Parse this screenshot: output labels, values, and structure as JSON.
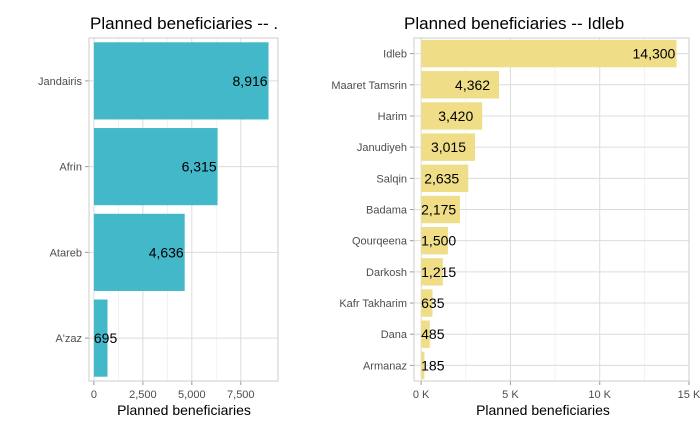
{
  "chart_data": [
    {
      "type": "bar",
      "orientation": "horizontal",
      "title": "Planned beneficiaries -- .",
      "xlabel": "Planned beneficiaries",
      "ylabel": "",
      "categories": [
        "Jandairis",
        "Afrin",
        "Atareb",
        "A'zaz"
      ],
      "values": [
        8916,
        6315,
        4636,
        695
      ],
      "value_labels": [
        "8,916",
        "6,315",
        "4,636",
        "695"
      ],
      "xlim": [
        -250,
        9400
      ],
      "xticks": [
        0,
        2500,
        5000,
        7500
      ],
      "xtick_labels": [
        "0",
        "2,500",
        "5,000",
        "7,500"
      ],
      "grid": true,
      "legend": "none",
      "bar_color": "#42b8c8"
    },
    {
      "type": "bar",
      "orientation": "horizontal",
      "title": "Planned beneficiaries -- Idleb",
      "xlabel": "Planned beneficiaries",
      "ylabel": "",
      "categories": [
        "Idleb",
        "Maaret Tamsrin",
        "Harim",
        "Janudiyeh",
        "Salqin",
        "Badama",
        "Qourqeena",
        "Darkosh",
        "Kafr Takharim",
        "Dana",
        "Armanaz"
      ],
      "values": [
        14300,
        4362,
        3420,
        3015,
        2635,
        2175,
        1500,
        1215,
        635,
        485,
        185
      ],
      "value_labels": [
        "14,300",
        "4,362",
        "3,420",
        "3,015",
        "2,635",
        "2,175",
        "1,500",
        "1,215",
        "635",
        "485",
        "185"
      ],
      "xlim": [
        -400,
        15000
      ],
      "xticks": [
        0,
        5000,
        10000,
        15000
      ],
      "xtick_labels": [
        "0 K",
        "5 K",
        "10 K",
        "15 K"
      ],
      "grid": true,
      "legend": "none",
      "bar_color": "#efde87"
    }
  ]
}
